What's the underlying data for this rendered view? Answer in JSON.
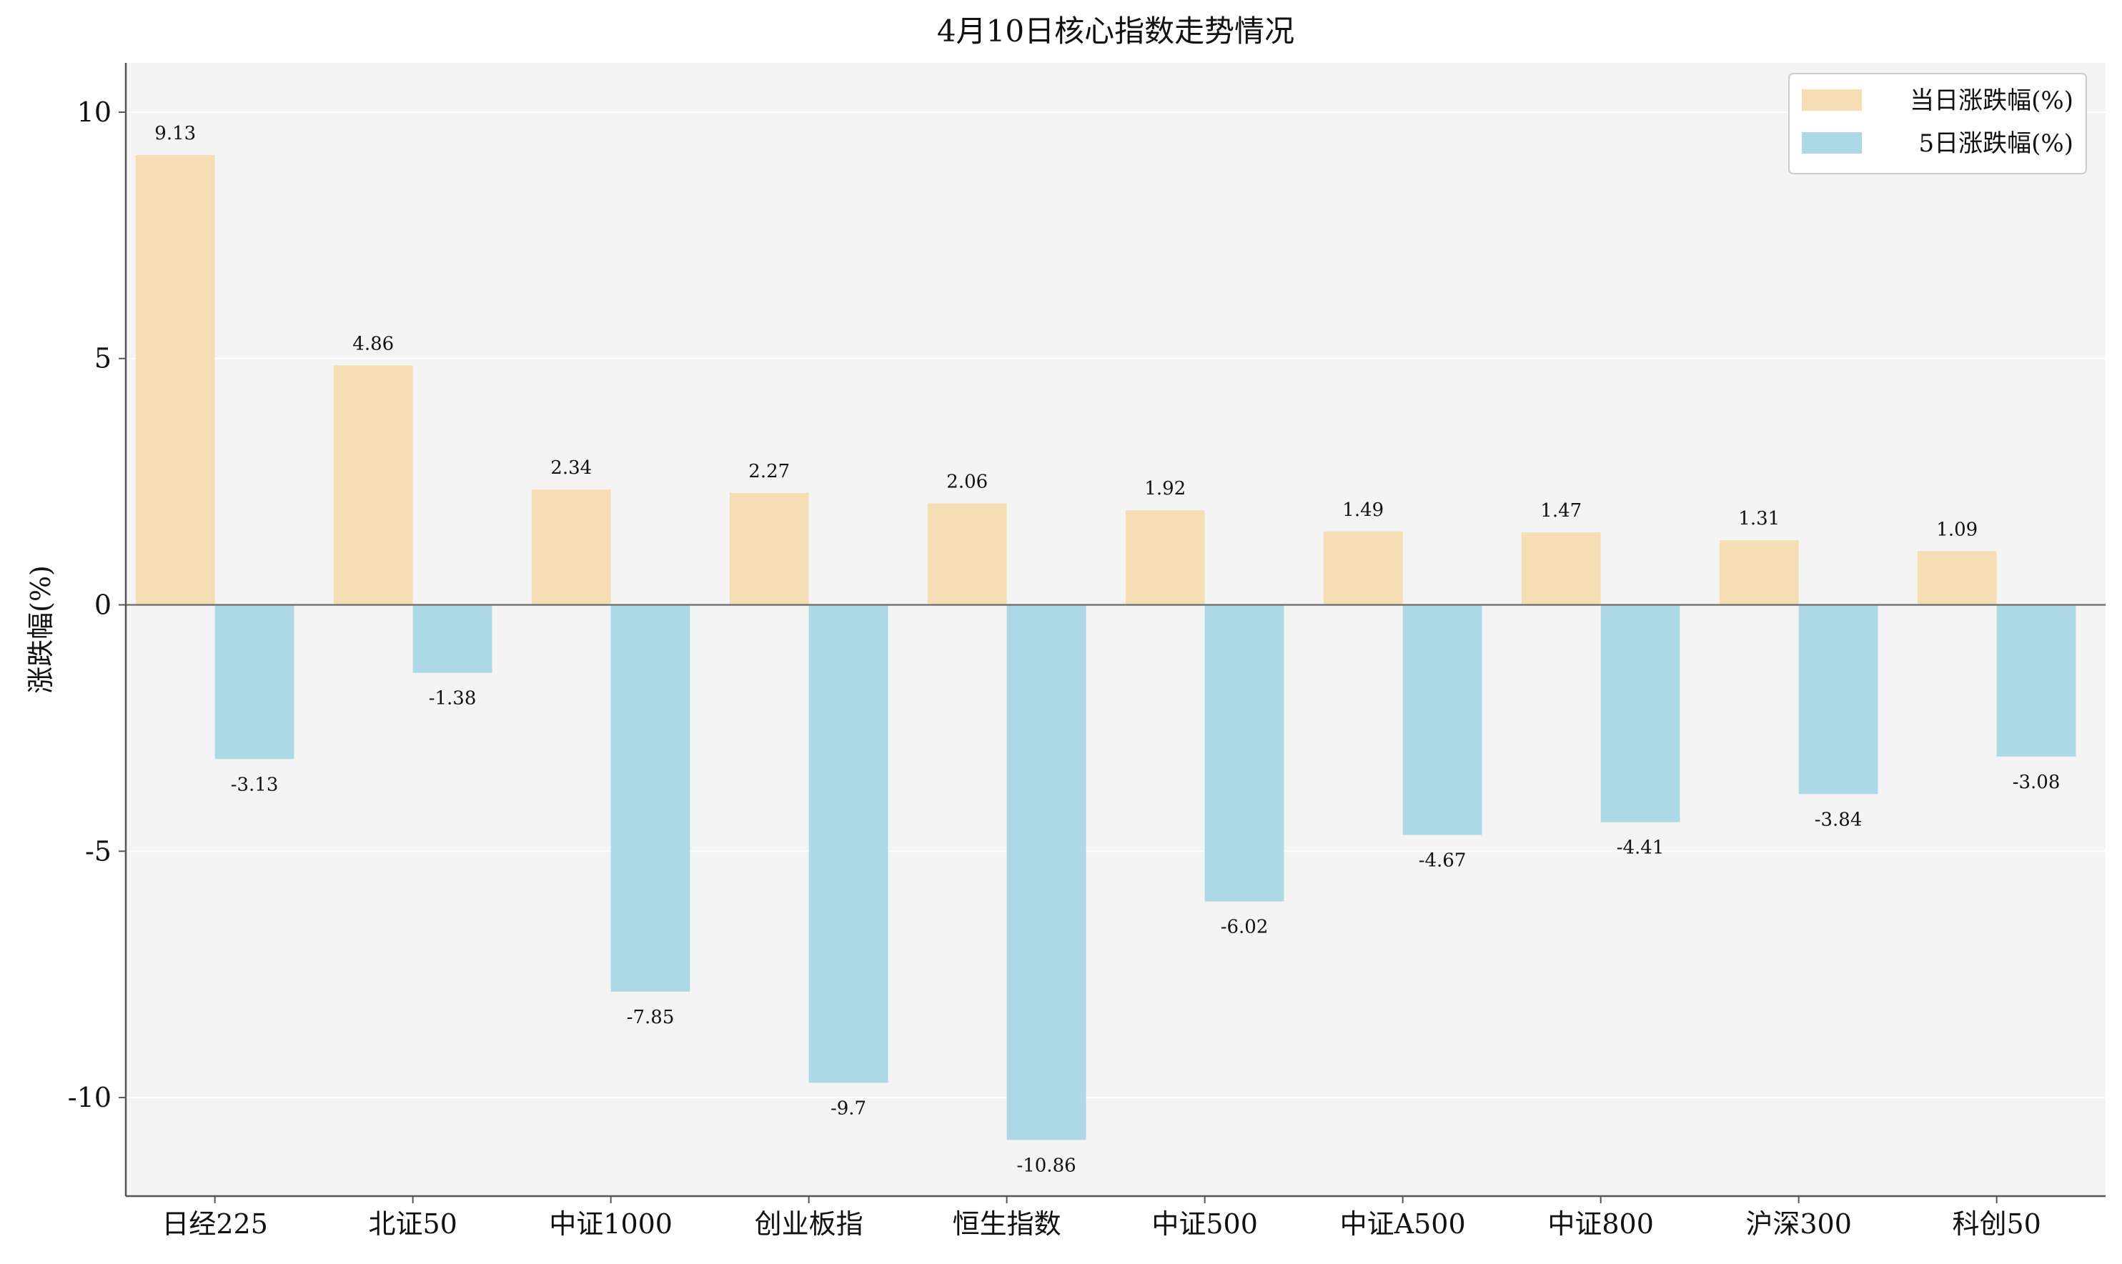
{
  "chart_data": {
    "type": "bar",
    "title": "4月10日核心指数走势情况",
    "xlabel": "",
    "ylabel": "涨跌幅(%)",
    "ylim": [
      -12,
      11
    ],
    "yticks": [
      10,
      5,
      0,
      -5,
      -10
    ],
    "grid": true,
    "legend_position": "top-right",
    "categories": [
      "日经225",
      "北证50",
      "中证1000",
      "创业板指",
      "恒生指数",
      "中证500",
      "中证A500",
      "中证800",
      "沪深300",
      "科创50"
    ],
    "series": [
      {
        "name": "当日涨跌幅(%)",
        "color": "#f5deb3",
        "values": [
          9.13,
          4.86,
          2.34,
          2.27,
          2.06,
          1.92,
          1.49,
          1.47,
          1.31,
          1.09
        ],
        "labels": [
          "9.13",
          "4.86",
          "2.34",
          "2.27",
          "2.06",
          "1.92",
          "1.49",
          "1.47",
          "1.31",
          "1.09"
        ]
      },
      {
        "name": "5日涨跌幅(%)",
        "color": "#add8e6",
        "values": [
          -3.13,
          -1.38,
          -7.85,
          -9.7,
          -10.86,
          -6.02,
          -4.67,
          -4.41,
          -3.84,
          -3.08
        ],
        "labels": [
          "-3.13",
          "-1.38",
          "-7.85",
          "-9.7",
          "-10.86",
          "-6.02",
          "-4.67",
          "-4.41",
          "-3.84",
          "-3.08"
        ]
      }
    ],
    "colors": {
      "plot_background": "#f4f4f4",
      "grid": "#ffffff",
      "axis": "#555555",
      "zero_line": "#777777"
    }
  }
}
